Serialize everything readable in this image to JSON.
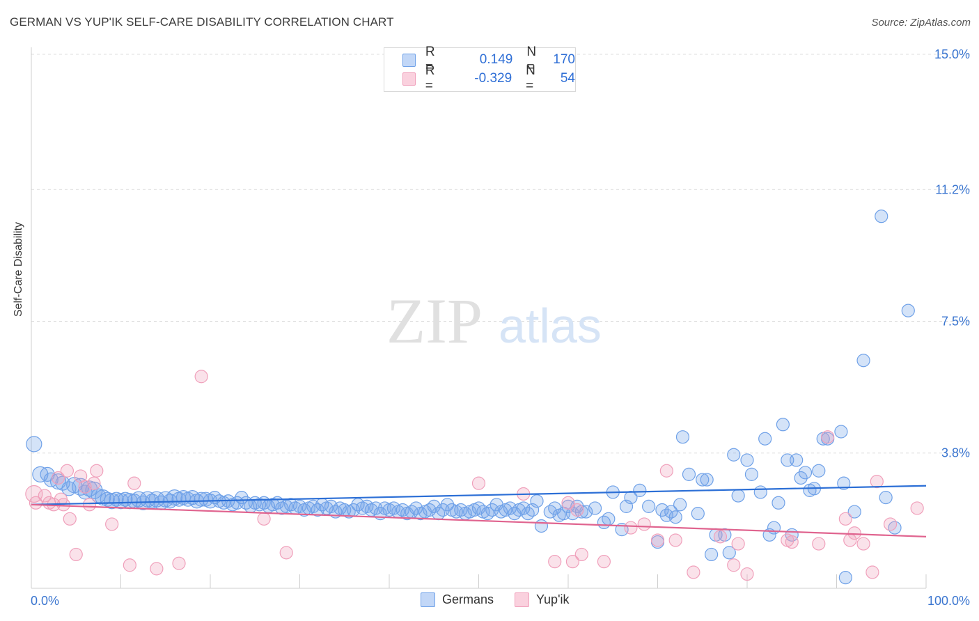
{
  "title": "GERMAN VS YUP'IK SELF-CARE DISABILITY CORRELATION CHART",
  "source": "Source: ZipAtlas.com",
  "watermark": {
    "zip": "ZIP",
    "atlas": "atlas"
  },
  "legend": {
    "rows": [
      {
        "r_label": "R =",
        "r_value": "0.149",
        "n_label": "N =",
        "n_value": "170",
        "color": "#6fa1e8"
      },
      {
        "r_label": "R =",
        "r_value": "-0.329",
        "n_label": "N =",
        "n_value": "54",
        "color": "#f0a0bb"
      }
    ]
  },
  "bottom_legend": [
    {
      "label": "Germans",
      "color": "#6fa1e8"
    },
    {
      "label": "Yup'ik",
      "color": "#f0a0bb"
    }
  ],
  "chart_data": {
    "type": "scatter",
    "title": "GERMAN VS YUP'IK SELF-CARE DISABILITY CORRELATION CHART",
    "xlabel": "",
    "ylabel": "Self-Care Disability",
    "xlim": [
      0,
      100
    ],
    "ylim": [
      0,
      15
    ],
    "x_tick_labels": [
      "0.0%",
      "100.0%"
    ],
    "y_tick_labels": [
      "3.8%",
      "7.5%",
      "11.2%",
      "15.0%"
    ],
    "y_ticks": [
      3.8,
      7.5,
      11.2,
      15.0
    ],
    "grid": true,
    "legend_position": "top-center",
    "series": [
      {
        "name": "Germans",
        "color": "#6fa1e8",
        "trend": {
          "x": [
            0,
            100
          ],
          "y": [
            2.35,
            2.88
          ]
        },
        "points": [
          [
            0.3,
            4.05,
            11
          ],
          [
            1.0,
            3.2,
            11
          ],
          [
            1.8,
            3.2,
            10
          ],
          [
            2.2,
            3.05,
            10
          ],
          [
            3.0,
            3.0,
            11
          ],
          [
            3.5,
            2.95,
            10
          ],
          [
            4.2,
            2.8,
            10
          ],
          [
            4.8,
            2.9,
            11
          ],
          [
            5.5,
            2.85,
            12
          ],
          [
            6.0,
            2.7,
            10
          ],
          [
            6.5,
            2.8,
            11
          ],
          [
            7.0,
            2.75,
            12
          ],
          [
            7.5,
            2.6,
            10
          ],
          [
            8.0,
            2.55,
            11
          ],
          [
            8.5,
            2.5,
            10
          ],
          [
            9.0,
            2.45,
            11
          ],
          [
            9.5,
            2.5,
            10
          ],
          [
            10.0,
            2.45,
            11
          ],
          [
            10.5,
            2.5,
            10
          ],
          [
            11.0,
            2.45,
            11
          ],
          [
            11.5,
            2.45,
            10
          ],
          [
            12.0,
            2.5,
            11
          ],
          [
            12.5,
            2.4,
            10
          ],
          [
            13.0,
            2.5,
            11
          ],
          [
            13.5,
            2.45,
            10
          ],
          [
            14.0,
            2.5,
            11
          ],
          [
            14.5,
            2.4,
            10
          ],
          [
            15.0,
            2.5,
            11
          ],
          [
            15.5,
            2.45,
            10
          ],
          [
            16.0,
            2.55,
            11
          ],
          [
            16.5,
            2.5,
            10
          ],
          [
            17.0,
            2.55,
            10
          ],
          [
            17.5,
            2.5,
            10
          ],
          [
            18.0,
            2.55,
            10
          ],
          [
            18.5,
            2.45,
            10
          ],
          [
            19.0,
            2.5,
            10
          ],
          [
            19.5,
            2.5,
            10
          ],
          [
            20.0,
            2.45,
            10
          ],
          [
            20.5,
            2.55,
            9
          ],
          [
            21.0,
            2.45,
            9
          ],
          [
            21.5,
            2.4,
            9
          ],
          [
            22.0,
            2.45,
            9
          ],
          [
            22.5,
            2.35,
            9
          ],
          [
            23.0,
            2.4,
            9
          ],
          [
            23.5,
            2.55,
            9
          ],
          [
            24.0,
            2.4,
            9
          ],
          [
            24.5,
            2.3,
            9
          ],
          [
            25.0,
            2.4,
            9
          ],
          [
            25.5,
            2.35,
            9
          ],
          [
            26.0,
            2.4,
            9
          ],
          [
            26.5,
            2.3,
            9
          ],
          [
            27.0,
            2.35,
            9
          ],
          [
            27.5,
            2.4,
            9
          ],
          [
            28.0,
            2.25,
            9
          ],
          [
            28.5,
            2.3,
            9
          ],
          [
            29.0,
            2.35,
            9
          ],
          [
            29.5,
            2.25,
            9
          ],
          [
            30.0,
            2.3,
            9
          ],
          [
            30.5,
            2.2,
            9
          ],
          [
            31.0,
            2.25,
            9
          ],
          [
            31.5,
            2.3,
            9
          ],
          [
            32.0,
            2.2,
            9
          ],
          [
            32.5,
            2.35,
            9
          ],
          [
            33.0,
            2.25,
            9
          ],
          [
            33.5,
            2.3,
            9
          ],
          [
            34.0,
            2.15,
            9
          ],
          [
            34.5,
            2.25,
            9
          ],
          [
            35.0,
            2.2,
            9
          ],
          [
            35.5,
            2.15,
            9
          ],
          [
            36.0,
            2.2,
            9
          ],
          [
            36.5,
            2.35,
            9
          ],
          [
            37.0,
            2.25,
            9
          ],
          [
            37.5,
            2.3,
            9
          ],
          [
            38.0,
            2.2,
            9
          ],
          [
            38.5,
            2.25,
            9
          ],
          [
            39.0,
            2.1,
            9
          ],
          [
            39.5,
            2.25,
            9
          ],
          [
            40.0,
            2.2,
            9
          ],
          [
            40.5,
            2.25,
            9
          ],
          [
            41.0,
            2.15,
            9
          ],
          [
            41.5,
            2.2,
            9
          ],
          [
            42.0,
            2.1,
            9
          ],
          [
            42.5,
            2.15,
            9
          ],
          [
            43.0,
            2.25,
            9
          ],
          [
            43.5,
            2.1,
            9
          ],
          [
            44.0,
            2.15,
            9
          ],
          [
            44.5,
            2.2,
            9
          ],
          [
            45.0,
            2.3,
            9
          ],
          [
            45.5,
            2.1,
            9
          ],
          [
            46.0,
            2.2,
            9
          ],
          [
            46.5,
            2.35,
            9
          ],
          [
            47.0,
            2.2,
            9
          ],
          [
            47.5,
            2.15,
            9
          ],
          [
            48.0,
            2.2,
            9
          ],
          [
            48.5,
            2.1,
            9
          ],
          [
            49.0,
            2.15,
            9
          ],
          [
            49.5,
            2.2,
            9
          ],
          [
            50.0,
            2.25,
            9
          ],
          [
            50.5,
            2.15,
            9
          ],
          [
            51.0,
            2.1,
            9
          ],
          [
            51.5,
            2.2,
            9
          ],
          [
            52.0,
            2.35,
            9
          ],
          [
            52.5,
            2.15,
            9
          ],
          [
            53.0,
            2.2,
            9
          ],
          [
            53.5,
            2.25,
            9
          ],
          [
            54.0,
            2.1,
            9
          ],
          [
            54.5,
            2.2,
            9
          ],
          [
            55.0,
            2.25,
            9
          ],
          [
            55.5,
            2.1,
            9
          ],
          [
            56.0,
            2.2,
            9
          ],
          [
            56.5,
            2.45,
            9
          ],
          [
            57.0,
            1.75,
            9
          ],
          [
            58.0,
            2.15,
            9
          ],
          [
            58.5,
            2.25,
            9
          ],
          [
            59.0,
            2.05,
            9
          ],
          [
            59.5,
            2.1,
            9
          ],
          [
            60.0,
            2.3,
            9
          ],
          [
            60.5,
            2.1,
            9
          ],
          [
            61.0,
            2.3,
            9
          ],
          [
            61.5,
            2.15,
            9
          ],
          [
            62.0,
            2.15,
            9
          ],
          [
            63.0,
            2.25,
            9
          ],
          [
            64.0,
            1.85,
            9
          ],
          [
            64.5,
            1.95,
            9
          ],
          [
            65.0,
            2.7,
            9
          ],
          [
            66.0,
            1.65,
            9
          ],
          [
            66.5,
            2.3,
            9
          ],
          [
            67.0,
            2.55,
            9
          ],
          [
            68.0,
            2.75,
            9
          ],
          [
            69.0,
            2.3,
            9
          ],
          [
            70.0,
            1.3,
            9
          ],
          [
            70.5,
            2.2,
            9
          ],
          [
            71.0,
            2.05,
            9
          ],
          [
            71.5,
            2.15,
            9
          ],
          [
            72.0,
            2.0,
            9
          ],
          [
            72.5,
            2.35,
            9
          ],
          [
            72.8,
            4.25,
            9
          ],
          [
            73.5,
            3.2,
            9
          ],
          [
            74.5,
            2.1,
            9
          ],
          [
            75.0,
            3.05,
            9
          ],
          [
            75.5,
            3.05,
            9
          ],
          [
            76.0,
            0.95,
            9
          ],
          [
            76.5,
            1.5,
            9
          ],
          [
            77.5,
            1.5,
            9
          ],
          [
            78.0,
            1.0,
            9
          ],
          [
            78.5,
            3.75,
            9
          ],
          [
            79.0,
            2.6,
            9
          ],
          [
            80.0,
            3.6,
            9
          ],
          [
            80.5,
            3.2,
            9
          ],
          [
            81.5,
            2.7,
            9
          ],
          [
            82.0,
            4.2,
            9
          ],
          [
            82.5,
            1.5,
            9
          ],
          [
            83.0,
            1.7,
            9
          ],
          [
            83.5,
            2.4,
            9
          ],
          [
            84.0,
            4.6,
            9
          ],
          [
            84.5,
            3.6,
            9
          ],
          [
            85.0,
            1.5,
            9
          ],
          [
            85.5,
            3.6,
            9
          ],
          [
            86.0,
            3.1,
            9
          ],
          [
            86.5,
            3.25,
            9
          ],
          [
            87.0,
            2.75,
            9
          ],
          [
            87.5,
            2.8,
            9
          ],
          [
            88.0,
            3.3,
            9
          ],
          [
            88.5,
            4.2,
            9
          ],
          [
            89.0,
            4.2,
            9
          ],
          [
            90.5,
            4.4,
            9
          ],
          [
            90.8,
            2.95,
            9
          ],
          [
            91.0,
            0.3,
            9
          ],
          [
            92.0,
            2.15,
            9
          ],
          [
            93.0,
            6.4,
            9
          ],
          [
            95.0,
            10.45,
            9
          ],
          [
            95.5,
            2.55,
            9
          ],
          [
            96.5,
            1.7,
            9
          ],
          [
            98.0,
            7.8,
            9
          ]
        ]
      },
      {
        "name": "Yup'ik",
        "color": "#f0a0bb",
        "trend": {
          "x": [
            0,
            100
          ],
          "y": [
            2.35,
            1.45
          ]
        },
        "points": [
          [
            0.3,
            2.65,
            12
          ],
          [
            0.5,
            2.4,
            9
          ],
          [
            1.5,
            2.6,
            9
          ],
          [
            2.0,
            2.4,
            9
          ],
          [
            2.5,
            2.35,
            9
          ],
          [
            3.0,
            3.1,
            9
          ],
          [
            3.3,
            2.5,
            9
          ],
          [
            3.6,
            2.35,
            9
          ],
          [
            4.0,
            3.3,
            9
          ],
          [
            4.3,
            1.95,
            9
          ],
          [
            5.0,
            0.95,
            9
          ],
          [
            5.5,
            3.15,
            9
          ],
          [
            6.0,
            2.85,
            9
          ],
          [
            6.5,
            2.35,
            9
          ],
          [
            7.0,
            2.95,
            9
          ],
          [
            7.3,
            3.3,
            9
          ],
          [
            9.0,
            1.8,
            9
          ],
          [
            11.0,
            0.65,
            9
          ],
          [
            11.5,
            2.95,
            9
          ],
          [
            14.0,
            0.55,
            9
          ],
          [
            16.5,
            0.7,
            9
          ],
          [
            19.0,
            5.95,
            9
          ],
          [
            26.0,
            1.95,
            9
          ],
          [
            28.5,
            1.0,
            9
          ],
          [
            50.0,
            2.95,
            9
          ],
          [
            55.0,
            2.65,
            9
          ],
          [
            58.5,
            0.75,
            9
          ],
          [
            60.0,
            2.4,
            9
          ],
          [
            60.5,
            0.75,
            9
          ],
          [
            61.0,
            2.2,
            9
          ],
          [
            61.5,
            0.95,
            9
          ],
          [
            64.0,
            0.75,
            9
          ],
          [
            67.0,
            1.7,
            9
          ],
          [
            68.5,
            1.8,
            9
          ],
          [
            70.0,
            1.35,
            9
          ],
          [
            71.0,
            3.3,
            9
          ],
          [
            72.0,
            1.35,
            9
          ],
          [
            74.0,
            0.45,
            9
          ],
          [
            77.0,
            1.45,
            9
          ],
          [
            78.5,
            0.65,
            9
          ],
          [
            79.0,
            1.25,
            9
          ],
          [
            80.0,
            0.4,
            9
          ],
          [
            84.5,
            1.35,
            9
          ],
          [
            85.0,
            1.3,
            9
          ],
          [
            88.0,
            1.25,
            9
          ],
          [
            89.0,
            4.25,
            9
          ],
          [
            91.0,
            1.95,
            9
          ],
          [
            91.5,
            1.35,
            9
          ],
          [
            92.0,
            1.55,
            9
          ],
          [
            93.0,
            1.25,
            9
          ],
          [
            94.0,
            0.45,
            9
          ],
          [
            94.5,
            3.0,
            9
          ],
          [
            96.0,
            1.8,
            9
          ],
          [
            99.0,
            2.25,
            9
          ]
        ]
      }
    ]
  }
}
